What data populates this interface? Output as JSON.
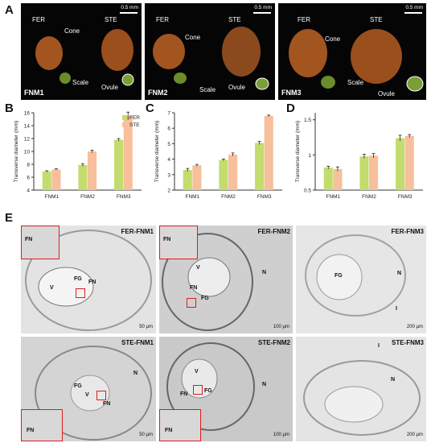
{
  "panel_letters": [
    "A",
    "B",
    "C",
    "D",
    "E"
  ],
  "photos": [
    {
      "stage": "FNM1",
      "scale": "0.5 mm",
      "labels": {
        "fer": "FER",
        "ste": "STE",
        "cone": "Cone",
        "scale_lbl": "Scale",
        "ovule": "Ovule"
      }
    },
    {
      "stage": "FNM2",
      "scale": "0.5 mm",
      "labels": {
        "fer": "FER",
        "ste": "STE",
        "cone": "Cone",
        "scale_lbl": "Scale",
        "ovule": "Ovule"
      }
    },
    {
      "stage": "FNM3",
      "scale": "0.5 mm",
      "labels": {
        "fer": "FER",
        "ste": "STE",
        "cone": "Cone",
        "scale_lbl": "Scale",
        "ovule": "Ovule"
      }
    }
  ],
  "colors": {
    "fer": "#c2dc6e",
    "ste": "#f7bf9c",
    "cone": "#a3551f",
    "inset_border": "#e01b1b"
  },
  "chart_data": [
    {
      "type": "bar",
      "panel": "B",
      "categories": [
        "FNM1",
        "FNM2",
        "FNM3"
      ],
      "series": [
        {
          "name": "FER",
          "values": [
            6.9,
            7.9,
            11.8
          ],
          "errors": [
            0.1,
            0.2,
            0.2
          ]
        },
        {
          "name": "STE",
          "values": [
            7.2,
            10.0,
            15.5
          ],
          "errors": [
            0.1,
            0.2,
            0.6
          ]
        }
      ],
      "ylabel": "Transverse diameter (mm)",
      "ylim": [
        4,
        16
      ],
      "yticks": [
        "4",
        "6",
        "8",
        "10",
        "12",
        "14",
        "16"
      ],
      "legend": "top-left"
    },
    {
      "type": "bar",
      "panel": "C",
      "categories": [
        "FNM1",
        "FNM2",
        "FNM3"
      ],
      "series": [
        {
          "name": "FER",
          "values": [
            3.3,
            3.95,
            5.05
          ],
          "errors": [
            0.1,
            0.06,
            0.1
          ]
        },
        {
          "name": "STE",
          "values": [
            3.6,
            4.3,
            6.8
          ],
          "errors": [
            0.06,
            0.1,
            0.05
          ]
        }
      ],
      "ylabel": "Transverse diameter (mm)",
      "ylim": [
        2,
        7
      ],
      "yticks": [
        "2",
        "3",
        "4",
        "5",
        "6",
        "7"
      ]
    },
    {
      "type": "bar",
      "panel": "D",
      "categories": [
        "FNM1",
        "FNM2",
        "FNM3"
      ],
      "series": [
        {
          "name": "FER",
          "values": [
            0.82,
            0.98,
            1.24
          ],
          "errors": [
            0.02,
            0.03,
            0.04
          ]
        },
        {
          "name": "STE",
          "values": [
            0.8,
            0.99,
            1.27
          ],
          "errors": [
            0.03,
            0.03,
            0.02
          ]
        }
      ],
      "ylabel": "Transverse diameter (mm)",
      "ylim": [
        0.5,
        1.6
      ],
      "yticks": [
        "0.5",
        "1",
        "1.5"
      ]
    }
  ],
  "micrographs": [
    {
      "title": "FER-FNM1",
      "scale": "50 μm",
      "labels": [
        "FN",
        "V",
        "FG",
        "FN"
      ]
    },
    {
      "title": "FER-FNM2",
      "scale": "100 μm",
      "labels": [
        "FN",
        "V",
        "N",
        "FN",
        "FG"
      ]
    },
    {
      "title": "FER-FNM3",
      "scale": "200 μm",
      "labels": [
        "FG",
        "N",
        "I"
      ]
    },
    {
      "title": "STE-FNM1",
      "scale": "50 μm",
      "labels": [
        "N",
        "FG",
        "V",
        "FN",
        "FN"
      ]
    },
    {
      "title": "STE-FNM2",
      "scale": "100 μm",
      "labels": [
        "V",
        "FN",
        "FG",
        "N",
        "FN"
      ]
    },
    {
      "title": "STE-FNM3",
      "scale": "200 μm",
      "labels": [
        "I",
        "N"
      ]
    }
  ]
}
